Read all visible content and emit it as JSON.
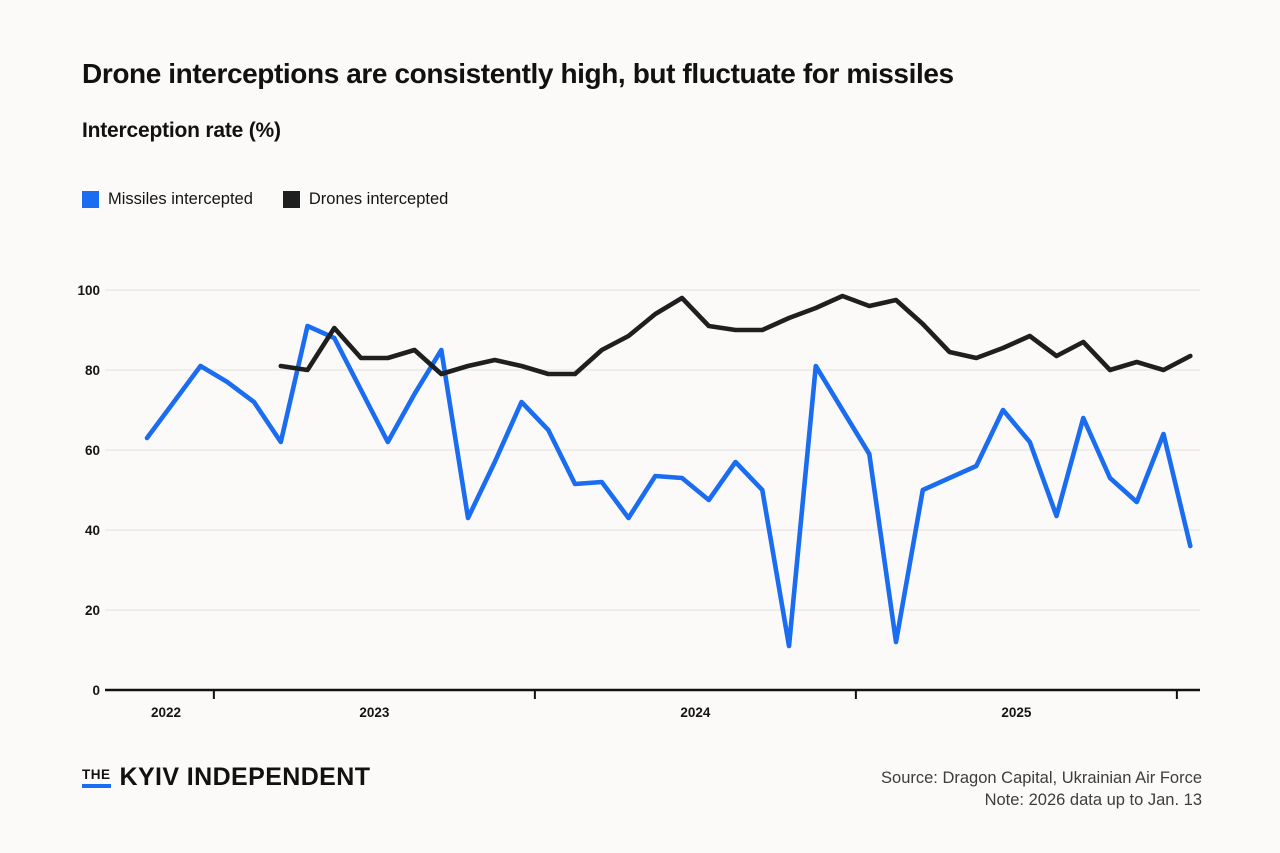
{
  "title": "Drone interceptions are consistently high, but fluctuate for missiles",
  "subtitle": "Interception rate (%)",
  "legend": [
    {
      "label": "Missiles intercepted",
      "color": "#1a6cf0"
    },
    {
      "label": "Drones intercepted",
      "color": "#1f1f1f"
    }
  ],
  "footer": {
    "logo_the": "THE",
    "logo_name": "KYIV INDEPENDENT",
    "logo_accent_color": "#1a6cf0",
    "source": "Source: Dragon Capital, Ukrainian Air Force",
    "note": "Note: 2026 data up to Jan. 13"
  },
  "colors": {
    "background": "#fbfaf8",
    "gridline": "#e6e5e1",
    "axis": "#111111",
    "missiles_line": "#1a6cf0",
    "drones_line": "#1f1f1f"
  },
  "chart_data": {
    "type": "line",
    "title": "Interception rate (%)",
    "x_axis": {
      "unit": "month",
      "range_start": "2022-10",
      "range_end": "2026-01",
      "tick_labels": [
        "2022",
        "2023",
        "2024",
        "2025"
      ]
    },
    "y_axis": {
      "min": 0,
      "max": 100,
      "ticks": [
        0,
        20,
        40,
        60,
        80,
        100
      ]
    },
    "legend_position": "top-left",
    "grid": true,
    "series": [
      {
        "name": "Missiles intercepted",
        "color": "#1a6cf0",
        "start": "2022-10",
        "values": [
          63,
          72,
          81,
          77,
          72,
          62,
          91,
          88,
          75,
          62,
          74,
          85,
          43,
          57,
          72,
          65,
          51.5,
          52,
          43,
          53.5,
          53,
          47.5,
          57,
          50,
          11,
          81,
          70,
          59,
          12,
          50,
          53,
          56,
          70,
          62,
          43.5,
          68,
          53,
          47,
          64,
          36
        ]
      },
      {
        "name": "Drones intercepted",
        "color": "#1f1f1f",
        "start": "2023-03",
        "values": [
          81,
          80,
          90.5,
          83,
          83,
          85,
          79,
          81,
          82.5,
          81,
          79,
          79,
          85,
          88.5,
          94,
          98,
          91,
          90,
          90,
          93,
          95.5,
          98.5,
          96,
          97.5,
          91.5,
          84.5,
          83,
          85.5,
          88.5,
          83.5,
          87,
          80,
          82,
          80,
          83.5
        ]
      }
    ]
  }
}
